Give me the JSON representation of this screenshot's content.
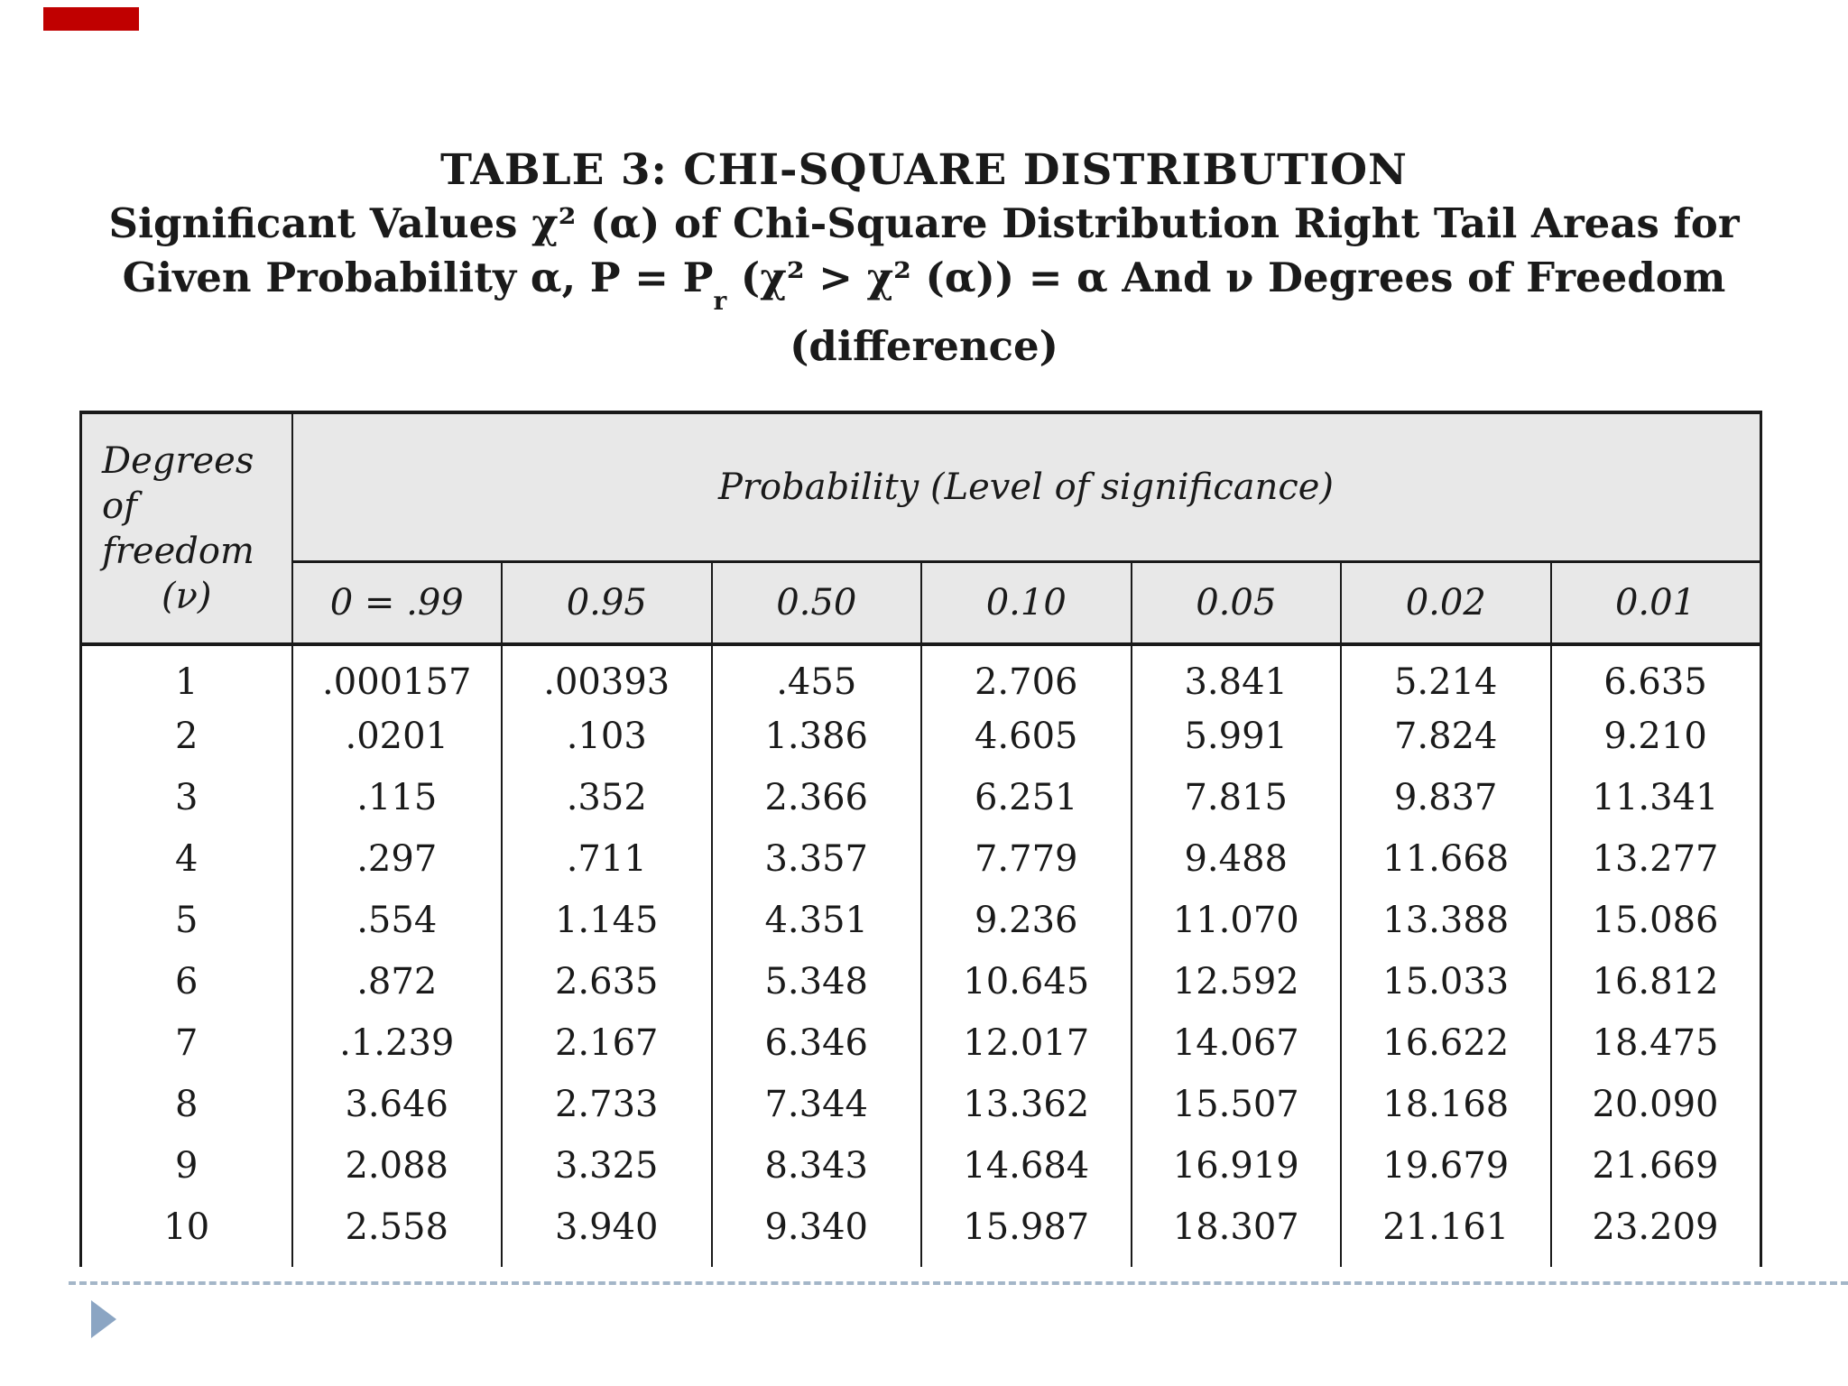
{
  "slide": {
    "accent_color": "#c00000",
    "title": "TABLE 3: CHI-SQUARE DISTRIBUTION",
    "subtitle_line1": "Significant Values χ² (α) of Chi-Square Distribution Right Tail Areas for",
    "subtitle_line2_pre": "Given Probability α, P = P",
    "subtitle_line2_sub": "r",
    "subtitle_line2_post": " (χ² > χ² (α)) = α And ν Degrees of Freedom",
    "subtitle_line3": "(difference)"
  },
  "table": {
    "corner_header": {
      "line1": "Degrees",
      "line2": "of",
      "line3": "freedom",
      "line4": "(ν)"
    },
    "span_header": "Probability (Level of significance)",
    "col_headers": [
      "0 = .99",
      "0.95",
      "0.50",
      "0.10",
      "0.05",
      "0.02",
      "0.01"
    ],
    "rows": [
      {
        "df": "1",
        "values": [
          ".000157",
          ".00393",
          ".455",
          "2.706",
          "3.841",
          "5.214",
          "6.635"
        ]
      },
      {
        "df": "2",
        "values": [
          ".0201",
          ".103",
          "1.386",
          "4.605",
          "5.991",
          "7.824",
          "9.210"
        ]
      },
      {
        "df": "3",
        "values": [
          ".115",
          ".352",
          "2.366",
          "6.251",
          "7.815",
          "9.837",
          "11.341"
        ]
      },
      {
        "df": "4",
        "values": [
          ".297",
          ".711",
          "3.357",
          "7.779",
          "9.488",
          "11.668",
          "13.277"
        ]
      },
      {
        "df": "5",
        "values": [
          ".554",
          "1.145",
          "4.351",
          "9.236",
          "11.070",
          "13.388",
          "15.086"
        ]
      },
      {
        "df": "6",
        "values": [
          ".872",
          "2.635",
          "5.348",
          "10.645",
          "12.592",
          "15.033",
          "16.812"
        ]
      },
      {
        "df": "7",
        "values": [
          ".1.239",
          "2.167",
          "6.346",
          "12.017",
          "14.067",
          "16.622",
          "18.475"
        ]
      },
      {
        "df": "8",
        "values": [
          "3.646",
          "2.733",
          "7.344",
          "13.362",
          "15.507",
          "18.168",
          "20.090"
        ]
      },
      {
        "df": "9",
        "values": [
          "2.088",
          "3.325",
          "8.343",
          "14.684",
          "16.919",
          "19.679",
          "21.669"
        ]
      },
      {
        "df": "10",
        "values": [
          "2.558",
          "3.940",
          "9.340",
          "15.987",
          "18.307",
          "21.161",
          "23.209"
        ]
      }
    ]
  },
  "colors": {
    "header_bg": "#e8e8e8",
    "border": "#1a1a1a",
    "divider": "#a4b6c8",
    "triangle": "#8ba5c3"
  }
}
